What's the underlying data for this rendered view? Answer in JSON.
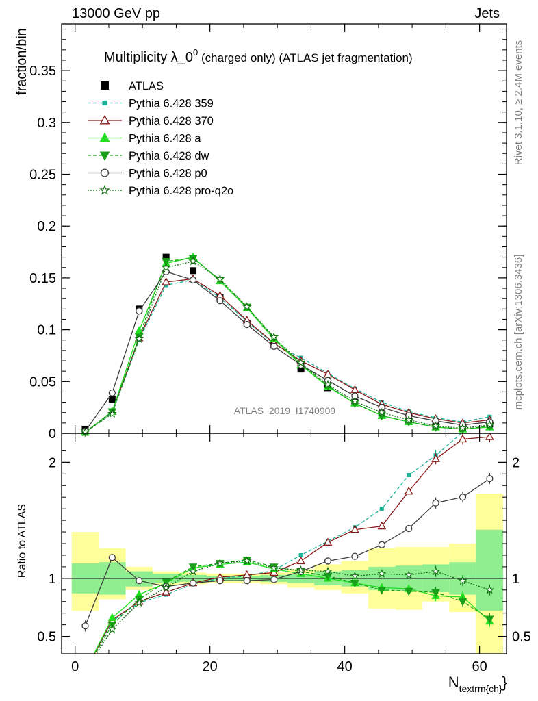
{
  "header": {
    "energy_label": "13000 GeV pp",
    "process_label": "Jets",
    "title_main": "Multiplicity λ_0",
    "title_sup": "0",
    "title_rest": " (charged only) (ATLAS jet fragmentation)",
    "analysis_id": "ATLAS_2019_I1740909",
    "rivet_label": "Rivet 3.1.10, ≥ 2.4M events",
    "mcplots_label": "mcplots.cern.ch [arXiv:1306.3436]"
  },
  "axes": {
    "ylabel_main": "fraction/bin",
    "ylabel_ratio": "Ratio to ATLAS",
    "xlabel_main": "N",
    "xlabel_sub": "textrm{ch}",
    "xlabel_close": "}"
  },
  "chart_data": [
    {
      "type": "line",
      "panel": "main",
      "x": [
        1.5,
        5.5,
        9.5,
        13.5,
        17.5,
        21.5,
        25.5,
        29.5,
        33.5,
        37.5,
        41.5,
        45.5,
        49.5,
        53.5,
        57.5,
        61.5
      ],
      "xlim": [
        -2,
        64
      ],
      "ylim": [
        0,
        0.395
      ],
      "yticks": [
        0,
        0.05,
        0.1,
        0.15,
        0.2,
        0.25,
        0.3,
        0.35
      ],
      "ytick_labels": [
        "0",
        "0.05",
        "0.1",
        "0.15",
        "0.2",
        "0.25",
        "0.3",
        "0.35"
      ],
      "xticks": [
        0,
        20,
        40,
        60
      ],
      "xtick_labels": [
        "0",
        "20",
        "40",
        "60"
      ],
      "legend_position": "top-left",
      "series": [
        {
          "name": "ATLAS",
          "color": "#000000",
          "marker": "square",
          "dash": "none",
          "values": [
            0.004,
            0.033,
            0.12,
            0.17,
            0.157,
            0.131,
            0.106,
            0.085,
            0.062,
            0.044,
            0.03,
            0.019,
            0.012,
            0.007,
            0.005,
            0.009
          ]
        },
        {
          "name": "Pythia 6.428 359",
          "color": "#19b096",
          "marker": "small-square",
          "dash": "dashed",
          "values": [
            0.001,
            0.02,
            0.09,
            0.143,
            0.148,
            0.131,
            0.108,
            0.086,
            0.073,
            0.058,
            0.043,
            0.03,
            0.021,
            0.015,
            0.011,
            0.016
          ]
        },
        {
          "name": "Pythia 6.428 370",
          "color": "#8b1a1a",
          "marker": "open-triangle",
          "dash": "none",
          "values": [
            0.001,
            0.021,
            0.092,
            0.146,
            0.149,
            0.133,
            0.109,
            0.087,
            0.07,
            0.057,
            0.042,
            0.028,
            0.02,
            0.014,
            0.01,
            0.013
          ]
        },
        {
          "name": "Pythia 6.428 a",
          "color": "#20e020",
          "marker": "filled-triangle",
          "dash": "none",
          "values": [
            0.001,
            0.021,
            0.099,
            0.164,
            0.17,
            0.147,
            0.121,
            0.091,
            0.066,
            0.045,
            0.029,
            0.017,
            0.011,
            0.006,
            0.004,
            0.006
          ]
        },
        {
          "name": "Pythia 6.428 dw",
          "color": "#18a018",
          "marker": "filled-triangle-down",
          "dash": "dashed",
          "values": [
            0.001,
            0.021,
            0.093,
            0.166,
            0.169,
            0.148,
            0.122,
            0.092,
            0.067,
            0.046,
            0.029,
            0.017,
            0.011,
            0.006,
            0.004,
            0.007
          ]
        },
        {
          "name": "Pythia 6.428 p0",
          "color": "#3c3c3c",
          "marker": "open-circle",
          "dash": "none",
          "values": [
            0.002,
            0.039,
            0.118,
            0.156,
            0.148,
            0.128,
            0.105,
            0.084,
            0.066,
            0.051,
            0.036,
            0.025,
            0.017,
            0.012,
            0.008,
            0.011
          ]
        },
        {
          "name": "Pythia 6.428 pro-q2o",
          "color": "#107010",
          "marker": "open-star",
          "dash": "dotted",
          "values": [
            0.001,
            0.019,
            0.091,
            0.16,
            0.166,
            0.149,
            0.122,
            0.093,
            0.068,
            0.047,
            0.031,
            0.02,
            0.013,
            0.007,
            0.005,
            0.008
          ]
        }
      ]
    },
    {
      "type": "line",
      "panel": "ratio",
      "x": [
        1.5,
        5.5,
        9.5,
        13.5,
        17.5,
        21.5,
        25.5,
        29.5,
        33.5,
        37.5,
        41.5,
        45.5,
        49.5,
        53.5,
        57.5,
        61.5
      ],
      "xlim": [
        -2,
        64
      ],
      "ylim": [
        0.35,
        2.25
      ],
      "yticks": [
        0.5,
        1,
        2
      ],
      "ytick_labels": [
        "0.5",
        "1",
        "2"
      ],
      "reference_line": 1,
      "bands": {
        "stat": {
          "color": "#90ee90",
          "lo": [
            0.87,
            0.86,
            0.93,
            0.96,
            0.97,
            0.98,
            0.98,
            0.97,
            0.96,
            0.94,
            0.93,
            0.9,
            0.89,
            0.88,
            0.86,
            0.72
          ],
          "hi": [
            1.13,
            1.14,
            1.06,
            1.04,
            1.03,
            1.02,
            1.02,
            1.03,
            1.04,
            1.06,
            1.07,
            1.1,
            1.11,
            1.12,
            1.14,
            1.42
          ]
        },
        "total": {
          "color": "#ffff99",
          "lo": [
            0.72,
            0.82,
            0.9,
            0.94,
            0.95,
            0.96,
            0.96,
            0.95,
            0.92,
            0.9,
            0.87,
            0.74,
            0.73,
            0.8,
            0.71,
            0.35
          ],
          "hi": [
            1.4,
            1.26,
            1.1,
            1.06,
            1.05,
            1.04,
            1.04,
            1.05,
            1.08,
            1.12,
            1.15,
            1.26,
            1.27,
            1.27,
            1.3,
            1.73
          ]
        }
      },
      "series": [
        {
          "name": "Pythia 6.428 359",
          "color": "#19b096",
          "marker": "small-square",
          "dash": "dashed",
          "values": [
            0.2,
            0.63,
            0.79,
            0.86,
            0.95,
            1.0,
            1.02,
            1.07,
            1.2,
            1.32,
            1.44,
            1.6,
            1.89,
            2.06,
            2.26,
            2.5
          ]
        },
        {
          "name": "Pythia 6.428 370",
          "color": "#8b1a1a",
          "marker": "open-triangle",
          "dash": "none",
          "values": [
            0.2,
            0.64,
            0.8,
            0.88,
            0.96,
            1.01,
            1.03,
            1.05,
            1.15,
            1.31,
            1.42,
            1.45,
            1.75,
            2.03,
            2.2,
            2.22
          ]
        },
        {
          "name": "Pythia 6.428 a",
          "color": "#20e020",
          "marker": "filled-triangle",
          "dash": "none",
          "values": [
            0.2,
            0.66,
            0.86,
            0.96,
            1.09,
            1.12,
            1.14,
            1.08,
            1.04,
            1.0,
            0.96,
            0.92,
            0.91,
            0.85,
            0.84,
            0.63
          ]
        },
        {
          "name": "Pythia 6.428 dw",
          "color": "#18a018",
          "marker": "filled-triangle-down",
          "dash": "dashed",
          "values": [
            0.2,
            0.6,
            0.82,
            0.97,
            1.1,
            1.13,
            1.16,
            1.1,
            1.06,
            1.02,
            0.96,
            0.9,
            0.89,
            0.88,
            0.8,
            0.65
          ]
        },
        {
          "name": "Pythia 6.428 p0",
          "color": "#3c3c3c",
          "marker": "open-circle",
          "dash": "none",
          "values": [
            0.59,
            1.18,
            0.98,
            0.93,
            0.96,
            0.98,
            0.98,
            0.99,
            1.06,
            1.15,
            1.19,
            1.29,
            1.43,
            1.65,
            1.7,
            1.86
          ]
        },
        {
          "name": "Pythia 6.428 pro-q2o",
          "color": "#107010",
          "marker": "open-star",
          "dash": "dotted",
          "values": [
            0.2,
            0.56,
            0.79,
            0.92,
            1.06,
            1.13,
            1.15,
            1.09,
            1.07,
            1.06,
            1.02,
            1.04,
            1.03,
            1.06,
            0.98,
            0.9
          ]
        }
      ]
    }
  ]
}
